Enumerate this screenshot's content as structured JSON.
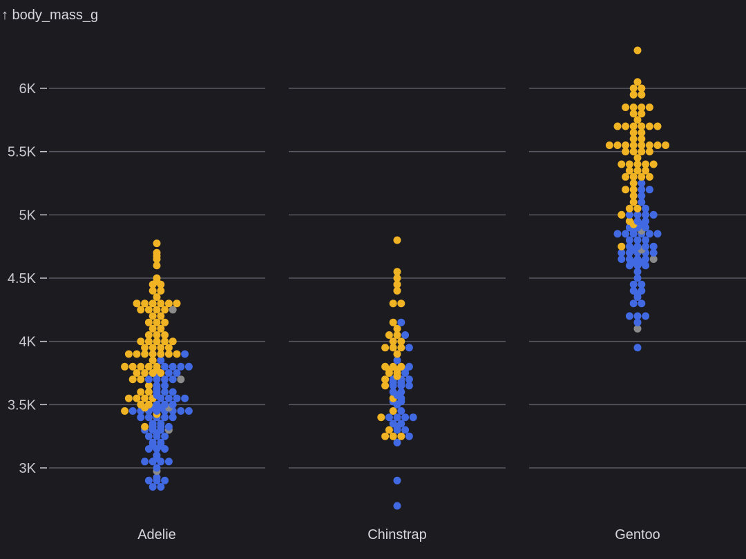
{
  "chart_data": {
    "type": "scatter",
    "subtype": "beeswarm",
    "ylabel": "↑ body_mass_g",
    "ylim": [
      2750,
      6300
    ],
    "yticks": [
      3000,
      3500,
      4000,
      4500,
      5000,
      5500,
      6000
    ],
    "ytick_labels": [
      "3K",
      "3.5K",
      "4K",
      "4.5K",
      "5K",
      "5.5K",
      "6K"
    ],
    "grid": true,
    "categories": [
      "Adelie",
      "Chinstrap",
      "Gentoo"
    ],
    "colors": {
      "MALE": "#f0b323",
      "FEMALE": "#4169e1",
      "unknown": "#8a8a8a",
      "background": "#1c1b20",
      "grid": "#5a5a62",
      "text": "#d6d6dc"
    },
    "series": [
      {
        "category": "Adelie",
        "MALE": [
          4775,
          4700,
          4675,
          4650,
          4600,
          4500,
          4475,
          4450,
          4450,
          4400,
          4400,
          4350,
          4300,
          4300,
          4300,
          4300,
          4300,
          4300,
          4250,
          4250,
          4250,
          4250,
          4200,
          4200,
          4150,
          4150,
          4150,
          4100,
          4100,
          4050,
          4050,
          4050,
          4000,
          4000,
          4000,
          4000,
          4000,
          3950,
          3950,
          3950,
          3950,
          3900,
          3900,
          3900,
          3900,
          3900,
          3900,
          3900,
          3850,
          3800,
          3800,
          3800,
          3800,
          3800,
          3775,
          3750,
          3750,
          3750,
          3750,
          3700,
          3700,
          3650,
          3600,
          3600,
          3550,
          3550,
          3550,
          3550,
          3500,
          3500,
          3475,
          3450,
          3425,
          3325
        ],
        "FEMALE": [
          3900,
          3850,
          3800,
          3800,
          3800,
          3800,
          3750,
          3750,
          3725,
          3700,
          3700,
          3700,
          3700,
          3650,
          3650,
          3625,
          3600,
          3600,
          3600,
          3575,
          3550,
          3550,
          3550,
          3550,
          3500,
          3500,
          3500,
          3475,
          3475,
          3450,
          3450,
          3450,
          3450,
          3450,
          3450,
          3450,
          3450,
          3400,
          3400,
          3400,
          3400,
          3400,
          3350,
          3350,
          3325,
          3325,
          3325,
          3300,
          3300,
          3300,
          3275,
          3250,
          3250,
          3250,
          3200,
          3200,
          3175,
          3175,
          3150,
          3150,
          3150,
          3100,
          3075,
          3050,
          3050,
          3050,
          3050,
          3000,
          2925,
          2900,
          2900,
          2900,
          2850,
          2850
        ],
        "unknown": [
          4250,
          3700,
          3475,
          3300,
          2975
        ]
      },
      {
        "category": "Chinstrap",
        "MALE": [
          4800,
          4550,
          4500,
          4450,
          4400,
          4300,
          4300,
          4150,
          4100,
          4050,
          4050,
          4000,
          4000,
          3950,
          3950,
          3950,
          3900,
          3800,
          3800,
          3800,
          3775,
          3775,
          3750,
          3750,
          3725,
          3700,
          3650,
          3550,
          3450,
          3400,
          3300,
          3250,
          3250,
          3250
        ],
        "FEMALE": [
          4150,
          4050,
          3950,
          3850,
          3800,
          3775,
          3750,
          3700,
          3700,
          3700,
          3675,
          3675,
          3650,
          3650,
          3650,
          3600,
          3600,
          3575,
          3550,
          3525,
          3525,
          3500,
          3450,
          3400,
          3400,
          3400,
          3400,
          3350,
          3350,
          3325,
          3300,
          3300,
          3250,
          3200,
          2900,
          2700
        ]
      },
      {
        "category": "Gentoo",
        "MALE": [
          6300,
          6050,
          6000,
          6000,
          5950,
          5950,
          5850,
          5850,
          5850,
          5850,
          5800,
          5800,
          5750,
          5700,
          5700,
          5700,
          5700,
          5700,
          5700,
          5650,
          5650,
          5600,
          5600,
          5550,
          5550,
          5550,
          5550,
          5550,
          5550,
          5550,
          5550,
          5500,
          5500,
          5500,
          5500,
          5450,
          5400,
          5400,
          5400,
          5400,
          5400,
          5350,
          5350,
          5350,
          5300,
          5300,
          5300,
          5300,
          5250,
          5200,
          5200,
          5150,
          5100,
          5050,
          5050,
          5000,
          4950,
          4925,
          4750
        ],
        "FEMALE": [
          5250,
          5200,
          5200,
          5150,
          5100,
          5050,
          5000,
          5000,
          5000,
          5000,
          4950,
          4950,
          4925,
          4900,
          4900,
          4900,
          4875,
          4850,
          4850,
          4850,
          4850,
          4850,
          4850,
          4800,
          4800,
          4800,
          4750,
          4750,
          4750,
          4750,
          4725,
          4700,
          4700,
          4700,
          4700,
          4700,
          4650,
          4650,
          4650,
          4650,
          4625,
          4625,
          4600,
          4600,
          4600,
          4550,
          4500,
          4450,
          4450,
          4400,
          4400,
          4375,
          4350,
          4300,
          4300,
          4200,
          4200,
          4200,
          4150,
          3950
        ],
        "unknown": [
          4875,
          4725,
          4650,
          4100
        ]
      }
    ]
  }
}
